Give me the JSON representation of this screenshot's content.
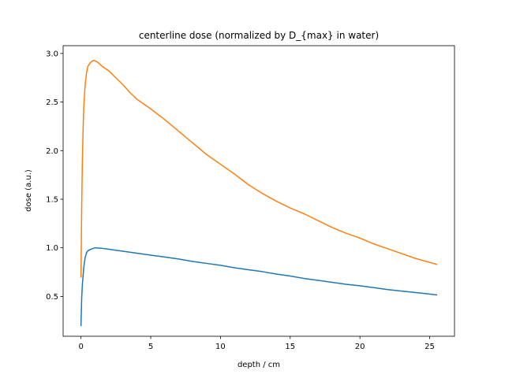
{
  "chart_data": {
    "type": "line",
    "title": "centerline dose (normalized by D_{max} in water)",
    "xlabel": "depth / cm",
    "ylabel": "dose (a.u.)",
    "xlim": [
      -1.28,
      26.78
    ],
    "ylim": [
      0.09,
      3.08
    ],
    "xticks": [
      0,
      5,
      10,
      15,
      20,
      25
    ],
    "yticks": [
      0.5,
      1.0,
      1.5,
      2.0,
      2.5,
      3.0
    ],
    "xtick_labels": [
      "0",
      "5",
      "10",
      "15",
      "20",
      "25"
    ],
    "ytick_labels": [
      "0.5",
      "1.0",
      "1.5",
      "2.0",
      "2.5",
      "3.0"
    ],
    "grid": false,
    "legend": false,
    "series": [
      {
        "color": "#1f77b4",
        "x": [
          0,
          0.05,
          0.1,
          0.2,
          0.3,
          0.4,
          0.5,
          0.7,
          1.0,
          1.5,
          2,
          3,
          4,
          5,
          6,
          7,
          8,
          9,
          10,
          11,
          12,
          13,
          14,
          15,
          16,
          17,
          18,
          19,
          20,
          21,
          22,
          23,
          24,
          25,
          25.5
        ],
        "y": [
          0.2,
          0.48,
          0.62,
          0.8,
          0.9,
          0.95,
          0.97,
          0.985,
          1.0,
          0.995,
          0.985,
          0.965,
          0.945,
          0.925,
          0.905,
          0.885,
          0.86,
          0.84,
          0.82,
          0.795,
          0.775,
          0.755,
          0.73,
          0.71,
          0.685,
          0.665,
          0.645,
          0.625,
          0.61,
          0.59,
          0.57,
          0.555,
          0.54,
          0.525,
          0.515
        ]
      },
      {
        "color": "#ff7f0e",
        "x": [
          0,
          0.05,
          0.1,
          0.15,
          0.2,
          0.3,
          0.4,
          0.5,
          0.7,
          0.9,
          1.2,
          1.5,
          2,
          2.5,
          3,
          3.5,
          4,
          5,
          6,
          7,
          8,
          9,
          10,
          11,
          12,
          13,
          14,
          15,
          16,
          17,
          18,
          19,
          20,
          21,
          22,
          23,
          24,
          25,
          25.5
        ],
        "y": [
          0.7,
          1.4,
          1.9,
          2.2,
          2.45,
          2.68,
          2.8,
          2.87,
          2.91,
          2.93,
          2.91,
          2.87,
          2.82,
          2.75,
          2.68,
          2.6,
          2.53,
          2.43,
          2.32,
          2.2,
          2.08,
          1.96,
          1.86,
          1.76,
          1.65,
          1.56,
          1.48,
          1.41,
          1.35,
          1.28,
          1.21,
          1.15,
          1.1,
          1.04,
          0.99,
          0.94,
          0.89,
          0.85,
          0.83
        ]
      }
    ]
  }
}
